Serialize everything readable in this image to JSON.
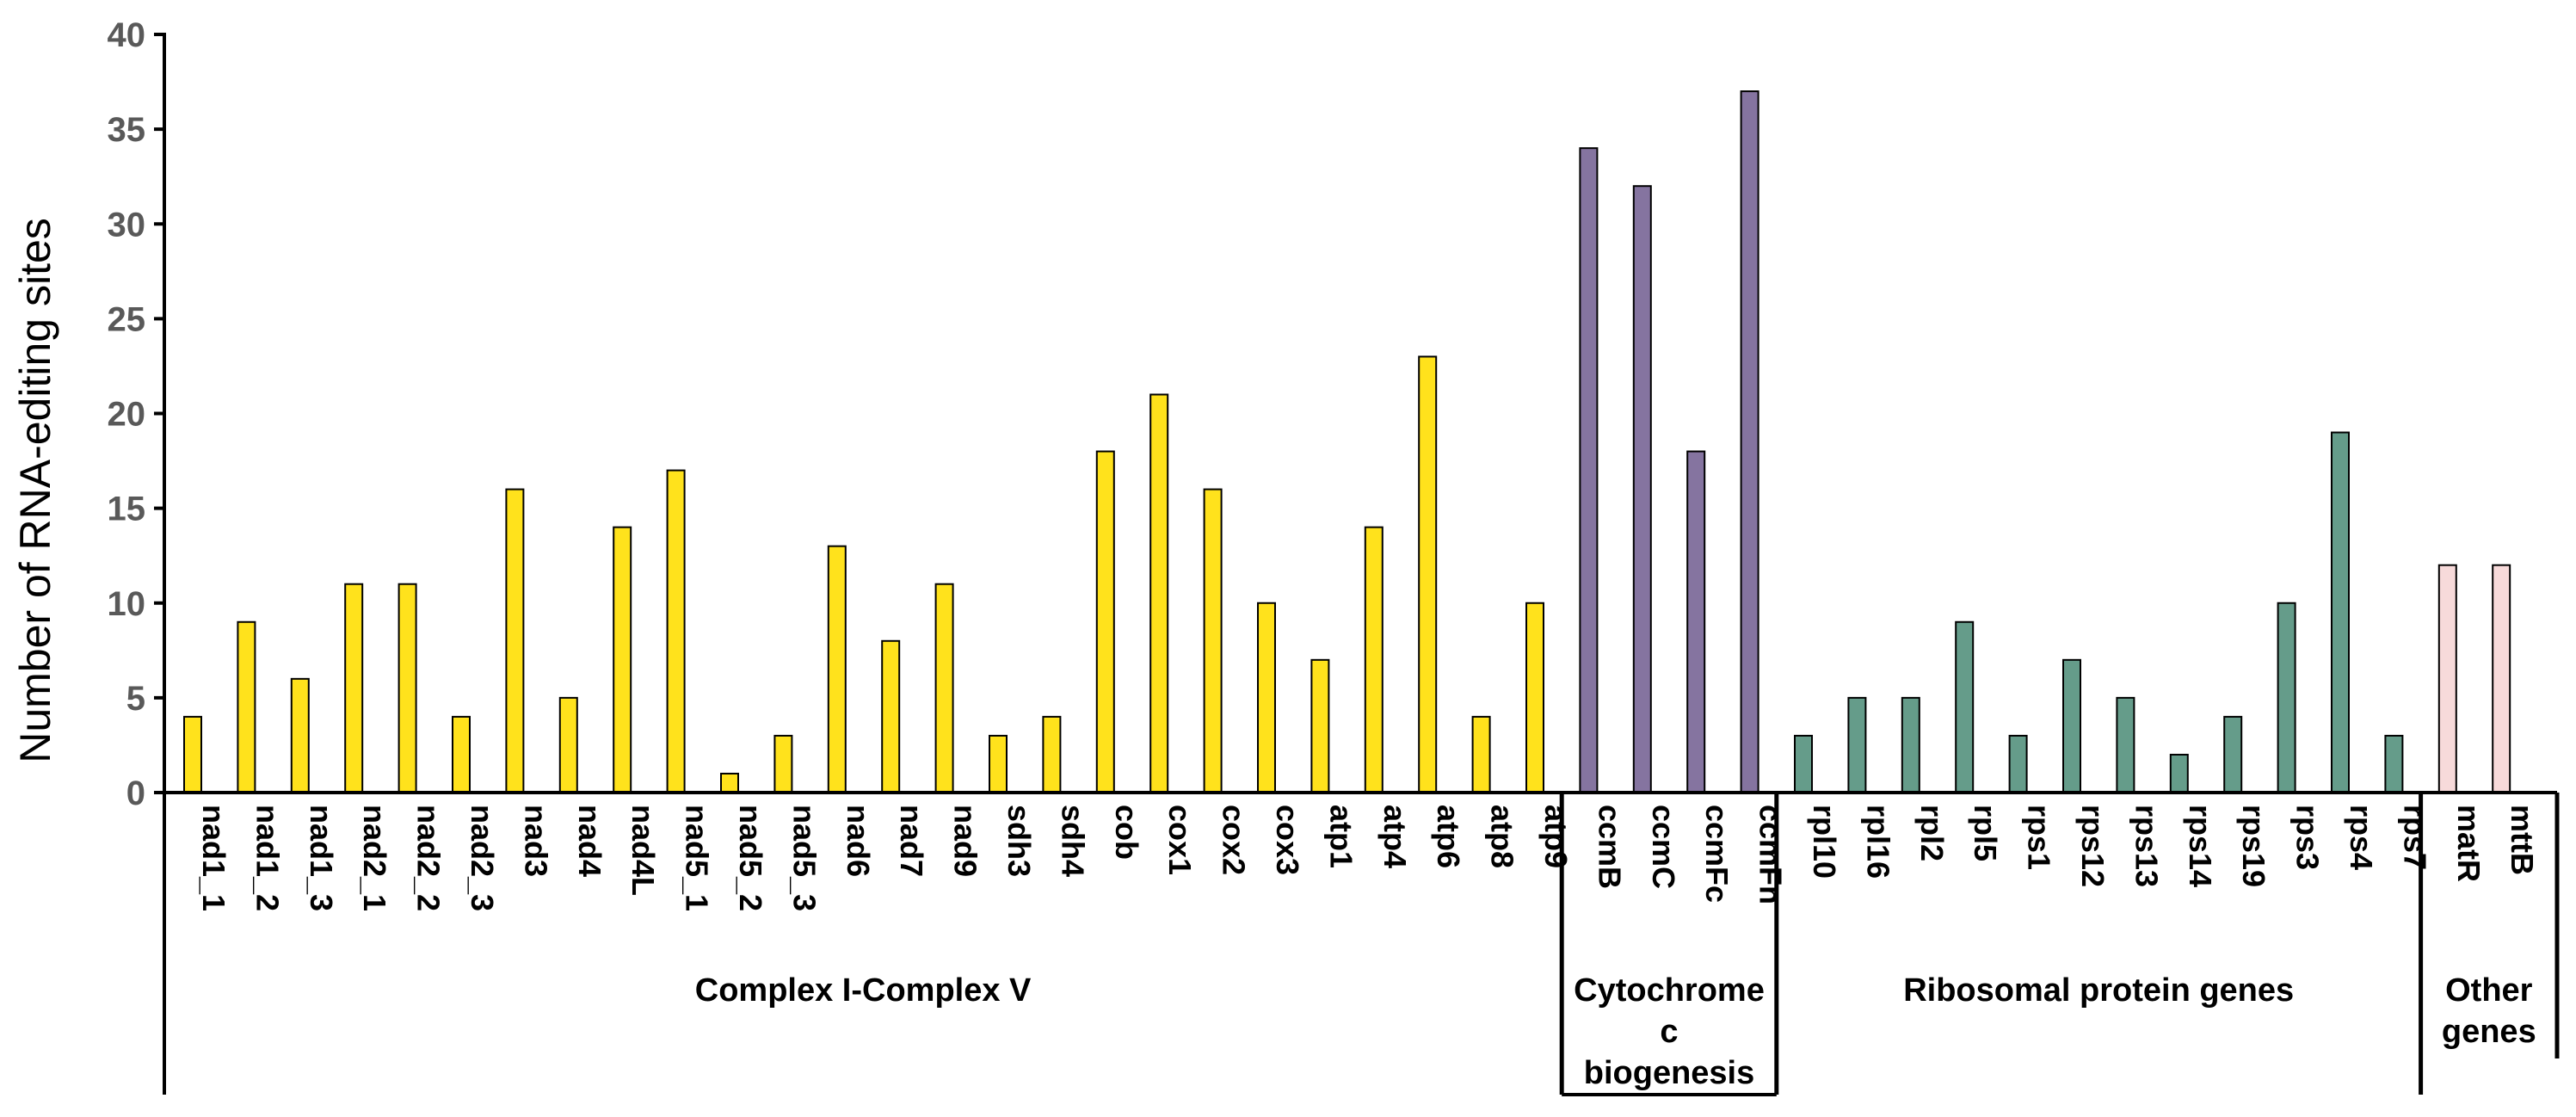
{
  "chart_data": {
    "type": "bar",
    "title": "",
    "xlabel": "",
    "ylabel": "Number of RNA-editing sites",
    "ylim": [
      0,
      40
    ],
    "yticks": [
      0,
      5,
      10,
      15,
      20,
      25,
      30,
      35,
      40
    ],
    "grid": false,
    "categories": [
      "nad1_1",
      "nad1_2",
      "nad1_3",
      "nad2_1",
      "nad2_2",
      "nad2_3",
      "nad3",
      "nad4",
      "nad4L",
      "nad5_1",
      "nad5_2",
      "nad5_3",
      "nad6",
      "nad7",
      "nad9",
      "sdh3",
      "sdh4",
      "cob",
      "cox1",
      "cox2",
      "cox3",
      "atp1",
      "atp4",
      "atp6",
      "atp8",
      "atp9",
      "ccmB",
      "ccmC",
      "ccmFc",
      "ccmFn",
      "rpl10",
      "rpl16",
      "rpl2",
      "rpl5",
      "rps1",
      "rps12",
      "rps13",
      "rps14",
      "rps19",
      "rps3",
      "rps4",
      "rps7",
      "matR",
      "mttB"
    ],
    "values": [
      4,
      9,
      6,
      11,
      11,
      4,
      16,
      5,
      14,
      17,
      1,
      3,
      13,
      8,
      11,
      3,
      4,
      18,
      21,
      16,
      10,
      7,
      14,
      23,
      4,
      10,
      34,
      32,
      18,
      37,
      3,
      5,
      5,
      9,
      3,
      7,
      5,
      2,
      4,
      10,
      19,
      3,
      12,
      12
    ],
    "groups": [
      {
        "name": "Complex I-Complex V",
        "lines": [
          "Complex I-Complex V"
        ],
        "start": 0,
        "end": 25,
        "color": "#FFE21C"
      },
      {
        "name": "Cytochrome c biogenesis",
        "lines": [
          "Cytochrome",
          "c",
          "biogenesis"
        ],
        "start": 26,
        "end": 29,
        "color": "#8574A0"
      },
      {
        "name": "Ribosomal protein genes",
        "lines": [
          "Ribosomal protein genes"
        ],
        "start": 30,
        "end": 41,
        "color": "#659C8A"
      },
      {
        "name": "Other genes",
        "lines": [
          "Other",
          "genes"
        ],
        "start": 42,
        "end": 43,
        "color": "#F7DADA"
      }
    ]
  }
}
